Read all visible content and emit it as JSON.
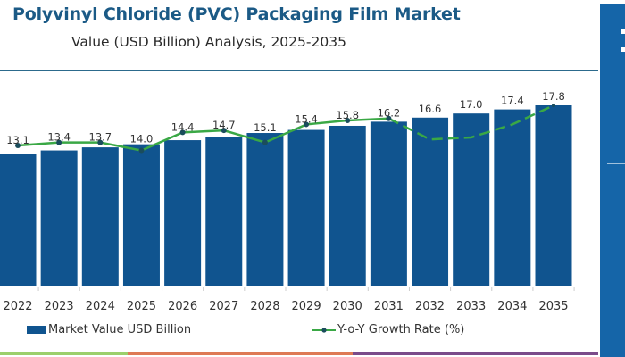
{
  "header": {
    "title": "Polyvinyl Chloride (PVC) Packaging Film Market",
    "subtitle": "Value (USD Billion) Analysis, 2025-2035"
  },
  "colors": {
    "title": "#1b5a86",
    "bar": "#10548f",
    "line": "#3aa845",
    "marker": "#1a4d5c",
    "side_panel": "#1565a8",
    "strip": [
      "#9ccf6c",
      "#de7a55",
      "#7a4b8a"
    ]
  },
  "chart_data": {
    "type": "bar",
    "title": "Polyvinyl Chloride (PVC) Packaging Film Market",
    "subtitle": "Value (USD Billion) Analysis, 2025-2035",
    "xlabel": "",
    "ylabel": "",
    "categories": [
      "2022",
      "2023",
      "2024",
      "2025",
      "2026",
      "2027",
      "2028",
      "2029",
      "2030",
      "2031",
      "2032",
      "2033",
      "2034",
      "2035"
    ],
    "series": [
      {
        "name": "Market Value USD Billion",
        "type": "bar",
        "values": [
          13.1,
          13.4,
          13.7,
          14.0,
          14.4,
          14.7,
          15.1,
          15.4,
          15.8,
          16.2,
          16.6,
          17.0,
          17.4,
          17.8
        ],
        "labels": [
          "13.1",
          "13.4",
          "13.7",
          "14.0",
          "14.4",
          "14.7",
          "15.1",
          "15.4",
          "15.8",
          "16.2",
          "16.6",
          "17.0",
          "17.4",
          "17.8"
        ]
      },
      {
        "name": "Y-o-Y Growth Rate (%)",
        "type": "line",
        "relative_level": [
          0.42,
          0.45,
          0.45,
          0.37,
          0.55,
          0.57,
          0.45,
          0.63,
          0.67,
          0.69,
          0.48,
          0.5,
          0.63,
          0.82
        ],
        "solid_until_index": 9,
        "markers_until_index": 9,
        "style_after": "dashed"
      }
    ],
    "ylim": [
      0,
      17.8
    ],
    "grid": false,
    "legend": "bottom"
  },
  "legend": {
    "items": [
      {
        "label": "Market Value USD Billion",
        "kind": "bar"
      },
      {
        "label": "Y-o-Y Growth Rate (%)",
        "kind": "line"
      }
    ]
  }
}
